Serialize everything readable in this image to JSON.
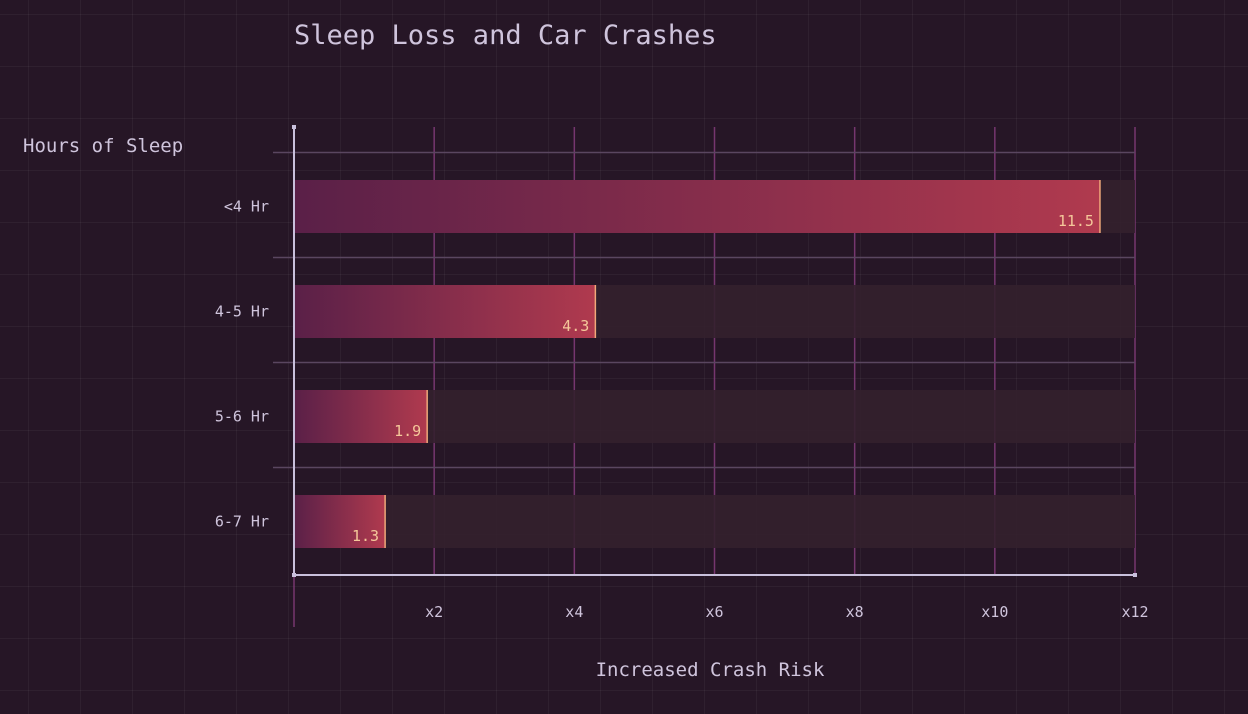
{
  "chart_data": {
    "type": "bar",
    "orientation": "horizontal",
    "title": "Sleep Loss and Car Crashes",
    "ylabel": "Hours of Sleep",
    "xlabel": "Increased Crash Risk",
    "categories": [
      "<4 Hr",
      "4-5 Hr",
      "5-6 Hr",
      "6-7 Hr"
    ],
    "values": [
      11.5,
      4.3,
      1.9,
      1.3
    ],
    "value_labels": [
      "11.5",
      "4.3",
      "1.9",
      "1.3"
    ],
    "xlim": [
      0,
      12
    ],
    "xticks": [
      2,
      4,
      6,
      8,
      10,
      12
    ],
    "xtick_labels": [
      "x2",
      "x4",
      "x6",
      "x8",
      "x10",
      "x12"
    ],
    "grid": true,
    "colors": {
      "bar_start": "#5a2048",
      "bar_end": "#b03a4e",
      "bar_edge": "#f0a87a",
      "value_label": "#f5c89a",
      "track": "#34202e",
      "text": "#cfc4dc",
      "axis": "#c9c0dc",
      "gridline": "#8a3f82"
    }
  }
}
